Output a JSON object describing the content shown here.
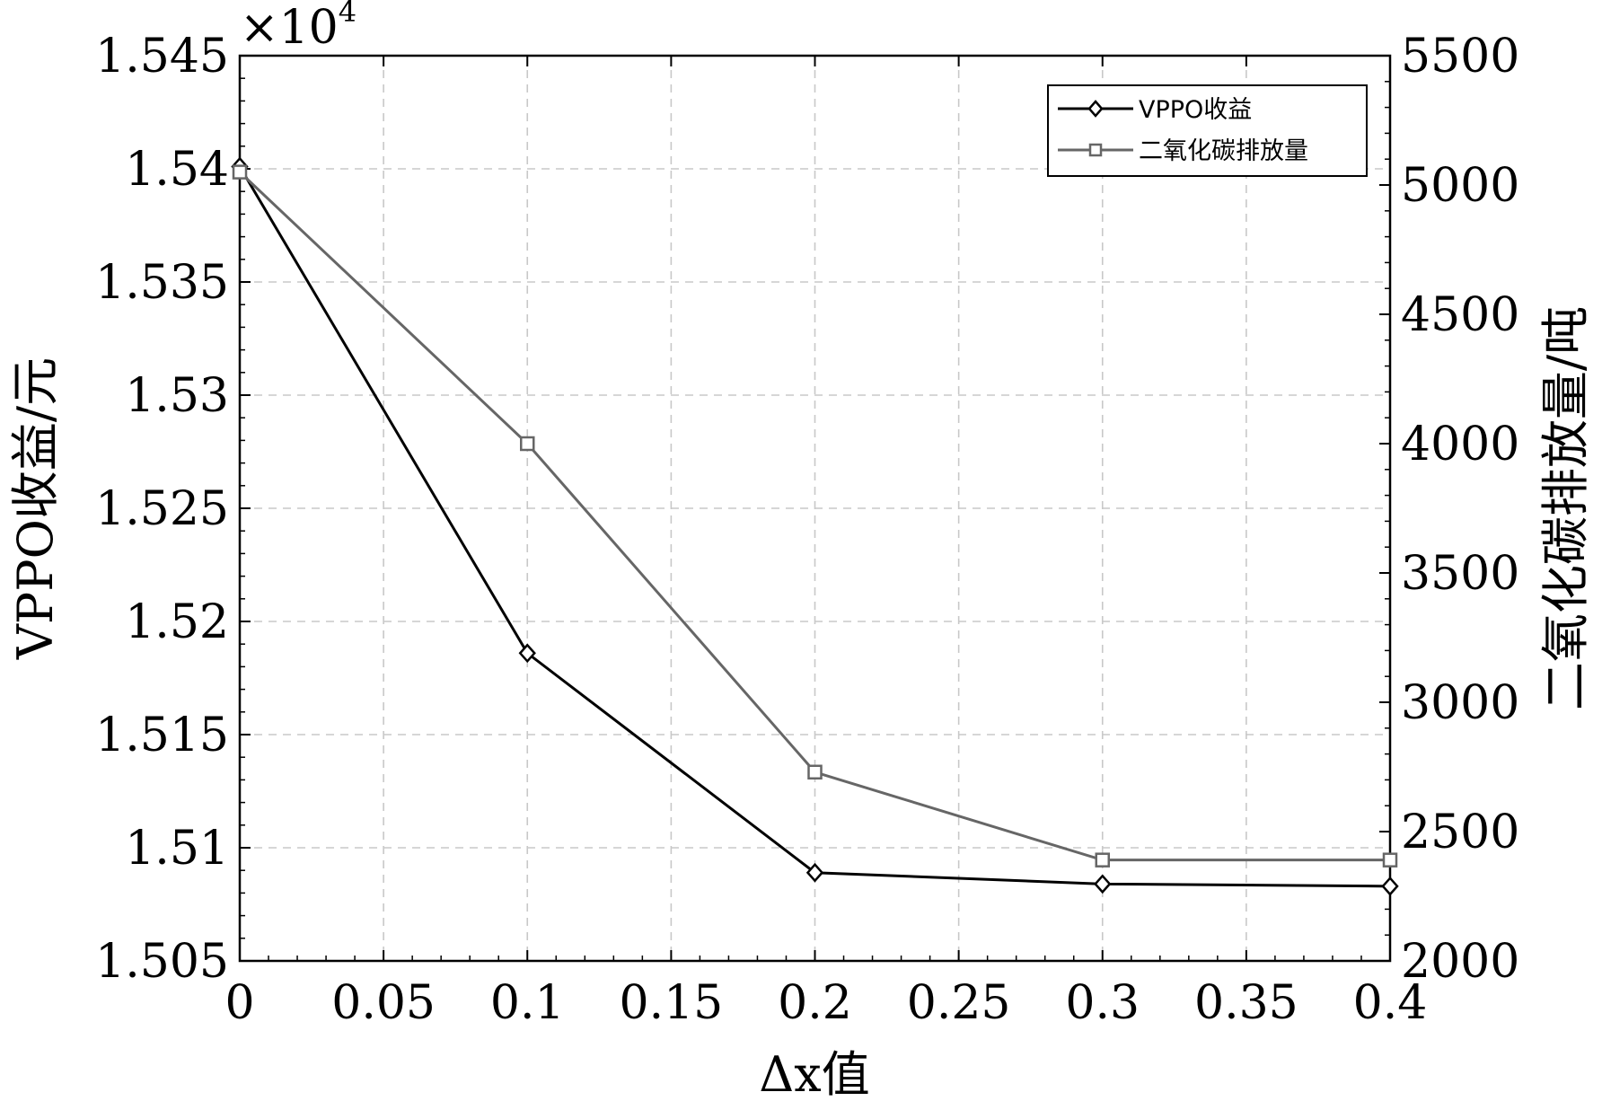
{
  "chart_data": {
    "type": "line",
    "x": [
      0,
      0.1,
      0.2,
      0.3,
      0.4
    ],
    "xlim": [
      0,
      0.4
    ],
    "xticks": [
      "0",
      "0.05",
      "0.1",
      "0.15",
      "0.2",
      "0.25",
      "0.3",
      "0.35",
      "0.4"
    ],
    "xlabel": "Δx值",
    "left_axis": {
      "label": "VPPO收益/元",
      "multiplier": "×10",
      "multiplier_exp": "4",
      "ylim": [
        1.505,
        1.545
      ],
      "ticks": [
        "1.505",
        "1.51",
        "1.515",
        "1.52",
        "1.525",
        "1.53",
        "1.535",
        "1.54",
        "1.545"
      ]
    },
    "right_axis": {
      "label": "二氧化碳排放量/吨",
      "ylim": [
        2000,
        5500
      ],
      "ticks": [
        "2000",
        "2500",
        "3000",
        "3500",
        "4000",
        "4500",
        "5000",
        "5500"
      ]
    },
    "series": [
      {
        "name": "VPPO收益",
        "axis": "left",
        "marker": "diamond",
        "color": "#000000",
        "values": [
          1.5401,
          1.5186,
          1.5089,
          1.5084,
          1.5083
        ]
      },
      {
        "name": "二氧化碳排放量",
        "axis": "right",
        "marker": "square",
        "color": "#666666",
        "values": [
          5050,
          4000,
          2730,
          2390,
          2390
        ]
      }
    ],
    "grid": true,
    "legend_position": "top-right"
  }
}
